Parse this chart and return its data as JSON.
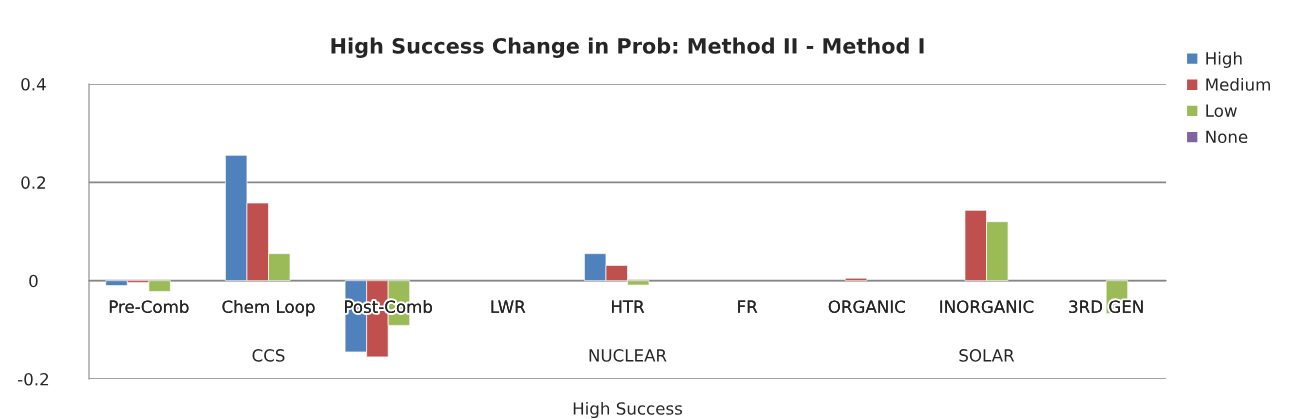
{
  "chart_data": {
    "type": "bar",
    "title": "High Success Change in Prob: Method II - Method I",
    "categories": [
      "Pre-Comb",
      "Chem Loop",
      "Post-Comb",
      "LWR",
      "HTR",
      "FR",
      "ORGANIC",
      "INORGANIC",
      "3RD GEN"
    ],
    "series": [
      {
        "name": "High",
        "color": "#4f81bd",
        "values": [
          -0.01,
          0.255,
          -0.145,
          null,
          0.055,
          null,
          null,
          null,
          null
        ]
      },
      {
        "name": "Medium",
        "color": "#c0504d",
        "values": [
          -0.004,
          0.158,
          -0.155,
          null,
          0.031,
          null,
          0.005,
          0.143,
          null
        ]
      },
      {
        "name": "Low",
        "color": "#9bbb59",
        "values": [
          -0.022,
          0.055,
          -0.091,
          null,
          -0.009,
          null,
          null,
          0.12,
          -0.067
        ]
      },
      {
        "name": "None",
        "color": "#8064a2",
        "values": [
          null,
          null,
          null,
          null,
          null,
          null,
          null,
          null,
          null
        ]
      }
    ],
    "annotations": [
      "CCS",
      "NUCLEAR",
      "SOLAR",
      "High Success"
    ],
    "ylim": [
      -0.2,
      0.4
    ],
    "yticks": [
      -0.2,
      0,
      0.2,
      0.4
    ],
    "grid": "y",
    "legend": "top right"
  }
}
